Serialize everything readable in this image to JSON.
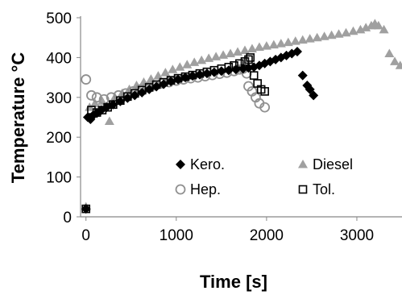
{
  "chart_data": {
    "type": "scatter",
    "xlabel": "Time [s]",
    "ylabel": "Temperature °C",
    "xlim": [
      -60,
      3500
    ],
    "ylim": [
      0,
      500
    ],
    "xticks": [
      0,
      1000,
      2000,
      3000
    ],
    "yticks": [
      0,
      100,
      200,
      300,
      400,
      500
    ],
    "grid": false,
    "legend": "bottom-right inside plot, 2 columns",
    "series": [
      {
        "name": "Kero.",
        "marker": "diamond-filled",
        "color": "#000000",
        "points": [
          [
            0,
            20
          ],
          [
            20,
            250
          ],
          [
            50,
            245
          ],
          [
            80,
            255
          ],
          [
            120,
            260
          ],
          [
            170,
            268
          ],
          [
            230,
            275
          ],
          [
            300,
            282
          ],
          [
            380,
            290
          ],
          [
            460,
            298
          ],
          [
            540,
            305
          ],
          [
            620,
            312
          ],
          [
            700,
            320
          ],
          [
            780,
            327
          ],
          [
            860,
            333
          ],
          [
            940,
            340
          ],
          [
            1020,
            345
          ],
          [
            1100,
            350
          ],
          [
            1180,
            354
          ],
          [
            1260,
            357
          ],
          [
            1340,
            360
          ],
          [
            1420,
            363
          ],
          [
            1500,
            366
          ],
          [
            1580,
            368
          ],
          [
            1660,
            370
          ],
          [
            1740,
            372
          ],
          [
            1800,
            374
          ],
          [
            1860,
            376
          ],
          [
            1920,
            380
          ],
          [
            1980,
            385
          ],
          [
            2040,
            390
          ],
          [
            2100,
            395
          ],
          [
            2160,
            400
          ],
          [
            2220,
            405
          ],
          [
            2280,
            410
          ],
          [
            2340,
            415
          ],
          [
            2400,
            355
          ],
          [
            2450,
            330
          ],
          [
            2480,
            320
          ],
          [
            2520,
            305
          ]
        ]
      },
      {
        "name": "Diesel",
        "marker": "triangle-filled",
        "color": "#a0a0a0",
        "points": [
          [
            0,
            25
          ],
          [
            40,
            275
          ],
          [
            100,
            285
          ],
          [
            180,
            290
          ],
          [
            260,
            240
          ],
          [
            320,
            300
          ],
          [
            400,
            310
          ],
          [
            480,
            320
          ],
          [
            560,
            330
          ],
          [
            640,
            338
          ],
          [
            720,
            346
          ],
          [
            800,
            354
          ],
          [
            880,
            362
          ],
          [
            960,
            370
          ],
          [
            1040,
            376
          ],
          [
            1120,
            382
          ],
          [
            1200,
            388
          ],
          [
            1280,
            393
          ],
          [
            1360,
            398
          ],
          [
            1440,
            402
          ],
          [
            1520,
            406
          ],
          [
            1600,
            410
          ],
          [
            1680,
            414
          ],
          [
            1760,
            418
          ],
          [
            1840,
            422
          ],
          [
            1920,
            426
          ],
          [
            2000,
            429
          ],
          [
            2080,
            432
          ],
          [
            2160,
            435
          ],
          [
            2240,
            438
          ],
          [
            2320,
            441
          ],
          [
            2400,
            444
          ],
          [
            2480,
            447
          ],
          [
            2560,
            450
          ],
          [
            2640,
            453
          ],
          [
            2720,
            456
          ],
          [
            2800,
            459
          ],
          [
            2880,
            462
          ],
          [
            2960,
            466
          ],
          [
            3040,
            470
          ],
          [
            3100,
            475
          ],
          [
            3160,
            480
          ],
          [
            3200,
            485
          ],
          [
            3240,
            480
          ],
          [
            3300,
            470
          ],
          [
            3360,
            410
          ],
          [
            3420,
            390
          ],
          [
            3480,
            380
          ]
        ]
      },
      {
        "name": "Hep.",
        "marker": "circle-open",
        "color": "#909090",
        "points": [
          [
            0,
            345
          ],
          [
            60,
            305
          ],
          [
            120,
            300
          ],
          [
            200,
            295
          ],
          [
            280,
            300
          ],
          [
            360,
            305
          ],
          [
            440,
            310
          ],
          [
            520,
            315
          ],
          [
            600,
            320
          ],
          [
            680,
            325
          ],
          [
            760,
            330
          ],
          [
            840,
            335
          ],
          [
            920,
            338
          ],
          [
            1000,
            342
          ],
          [
            1080,
            345
          ],
          [
            1160,
            348
          ],
          [
            1240,
            350
          ],
          [
            1320,
            353
          ],
          [
            1400,
            356
          ],
          [
            1480,
            359
          ],
          [
            1560,
            362
          ],
          [
            1640,
            366
          ],
          [
            1700,
            370
          ],
          [
            1740,
            372
          ],
          [
            1780,
            360
          ],
          [
            1800,
            328
          ],
          [
            1840,
            315
          ],
          [
            1880,
            300
          ],
          [
            1920,
            285
          ],
          [
            1980,
            275
          ]
        ]
      },
      {
        "name": "Tol.",
        "marker": "square-open",
        "color": "#000000",
        "points": [
          [
            0,
            20
          ],
          [
            60,
            268
          ],
          [
            120,
            262
          ],
          [
            180,
            268
          ],
          [
            240,
            275
          ],
          [
            300,
            282
          ],
          [
            380,
            292
          ],
          [
            460,
            302
          ],
          [
            540,
            310
          ],
          [
            620,
            318
          ],
          [
            700,
            325
          ],
          [
            780,
            332
          ],
          [
            860,
            338
          ],
          [
            940,
            343
          ],
          [
            1020,
            348
          ],
          [
            1100,
            352
          ],
          [
            1180,
            356
          ],
          [
            1260,
            360
          ],
          [
            1340,
            364
          ],
          [
            1420,
            368
          ],
          [
            1500,
            372
          ],
          [
            1580,
            376
          ],
          [
            1640,
            380
          ],
          [
            1700,
            385
          ],
          [
            1760,
            390
          ],
          [
            1800,
            395
          ],
          [
            1820,
            400
          ],
          [
            1860,
            355
          ],
          [
            1900,
            335
          ],
          [
            1940,
            320
          ],
          [
            1980,
            315
          ]
        ]
      }
    ]
  }
}
